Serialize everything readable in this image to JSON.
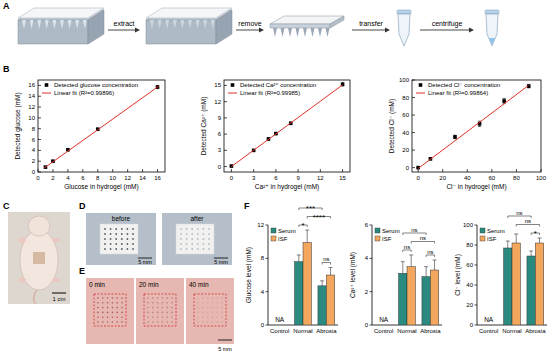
{
  "panel_labels": [
    "A",
    "B",
    "C",
    "D",
    "E",
    "F"
  ],
  "schematic": {
    "steps": [
      "extract",
      "remove",
      "transfer",
      "centrifuge"
    ]
  },
  "photos": {
    "C": {
      "scale_bar": "1 cm"
    },
    "D": {
      "captions": [
        "before",
        "after"
      ],
      "scale_bars": [
        "5 mm",
        "5 mm"
      ]
    },
    "E": {
      "captions": [
        "0 min",
        "20 min",
        "40 min"
      ],
      "scale_bar": "5 mm"
    }
  },
  "chart_data": [
    {
      "type": "scatter",
      "x_label": "Glucose in hydrogel (mM)",
      "y_label": "Detected glucose (mM)",
      "xlim": [
        0,
        17
      ],
      "ylim": [
        0,
        17
      ],
      "xticks": [
        0,
        2,
        4,
        6,
        8,
        10,
        12,
        14,
        16
      ],
      "yticks": [
        0,
        2,
        4,
        6,
        8,
        10,
        12,
        14,
        16
      ],
      "grid": false,
      "legend": "upper left",
      "series": [
        {
          "name": "Detected glucose concentration",
          "type": "scatter",
          "marker": "square",
          "color": "#000000",
          "x": [
            1,
            2,
            4,
            8,
            16
          ],
          "values": [
            0.9,
            2.0,
            4.1,
            7.9,
            15.7
          ],
          "errors": [
            0.1,
            0.1,
            0.15,
            0.2,
            0.3
          ]
        },
        {
          "name": "Linear fit (R²=0.99896)",
          "type": "line",
          "line_style": "solid",
          "color": "#e0302a",
          "x": [
            0.8,
            16.2
          ],
          "values": [
            0.7,
            15.9
          ]
        }
      ]
    },
    {
      "type": "scatter",
      "x_label": "Ca²⁺ in hydrogel (mM)",
      "y_label": "Detected Ca²⁺ (mM)",
      "xlim": [
        -1,
        16
      ],
      "ylim": [
        -1,
        16
      ],
      "xticks": [
        0,
        3,
        6,
        9,
        12,
        15
      ],
      "yticks": [
        0,
        3,
        6,
        9,
        12,
        15
      ],
      "grid": false,
      "legend": "upper left",
      "series": [
        {
          "name": "Detected Ca²⁺ concentration",
          "type": "scatter",
          "marker": "square",
          "color": "#000000",
          "x": [
            0,
            3,
            5,
            6,
            8,
            15
          ],
          "values": [
            0.1,
            3.0,
            5.1,
            6.1,
            8.0,
            15.2
          ],
          "errors": [
            0.1,
            0.1,
            0.2,
            0.2,
            0.2,
            0.3
          ]
        },
        {
          "name": "Linear fit (R²=0.99985)",
          "type": "line",
          "line_style": "solid",
          "color": "#e0302a",
          "x": [
            0,
            15
          ],
          "values": [
            0,
            15.1
          ]
        }
      ]
    },
    {
      "type": "scatter",
      "x_label": "Cl⁻ in hydrogel (mM)",
      "y_label": "Detected Cl⁻ (mM)",
      "xlim": [
        -5,
        100
      ],
      "ylim": [
        -5,
        100
      ],
      "xticks": [
        0,
        20,
        40,
        60,
        80,
        100
      ],
      "yticks": [
        0,
        20,
        40,
        60,
        80,
        100
      ],
      "grid": false,
      "legend": "upper left",
      "series": [
        {
          "name": "Detected Cl⁻ concentration",
          "type": "scatter",
          "marker": "square",
          "color": "#000000",
          "x": [
            0,
            10,
            30,
            50,
            70,
            90
          ],
          "values": [
            0,
            10,
            35,
            50,
            76,
            93
          ],
          "errors": [
            0.5,
            1,
            2,
            3,
            3,
            2
          ]
        },
        {
          "name": "Linear fit (R²=0.99864)",
          "type": "line",
          "line_style": "solid",
          "color": "#e0302a",
          "x": [
            0,
            90
          ],
          "values": [
            -1,
            94
          ]
        }
      ]
    },
    {
      "type": "bar",
      "y_label": "Glucose level (mM)",
      "categories": [
        "Control",
        "Normal",
        "Abrosia"
      ],
      "ylim": [
        0,
        12
      ],
      "yticks": [
        0,
        4,
        8,
        12
      ],
      "grid": false,
      "legend": "upper left",
      "series": [
        {
          "name": "Serum",
          "color": "#2a8a80",
          "values": [
            null,
            7.6,
            4.7
          ],
          "errors": [
            null,
            0.8,
            0.6
          ]
        },
        {
          "name": "ISF",
          "color": "#f2a65e",
          "values": [
            null,
            9.9,
            6.0
          ],
          "errors": [
            null,
            1.5,
            0.9
          ]
        }
      ],
      "annotations": [
        {
          "text": "NA",
          "category": "Control"
        }
      ],
      "comparisons": [
        {
          "label": "*",
          "bars": [
            [
              "Serum",
              "Normal"
            ],
            [
              "ISF",
              "Normal"
            ]
          ]
        },
        {
          "label": "ns",
          "bars": [
            [
              "Serum",
              "Abrosia"
            ],
            [
              "ISF",
              "Abrosia"
            ]
          ]
        },
        {
          "label": "****",
          "bars": [
            [
              "ISF",
              "Normal"
            ],
            [
              "ISF",
              "Abrosia"
            ]
          ]
        },
        {
          "label": "***",
          "bars": [
            [
              "Serum",
              "Normal"
            ],
            [
              "Serum",
              "Abrosia"
            ]
          ]
        }
      ]
    },
    {
      "type": "bar",
      "y_label": "Ca²⁺ level (mM)",
      "categories": [
        "Control",
        "Normal",
        "Abrosia"
      ],
      "ylim": [
        0,
        6
      ],
      "yticks": [
        0,
        2,
        4,
        6
      ],
      "grid": false,
      "legend": "upper left",
      "series": [
        {
          "name": "Serum",
          "color": "#2a8a80",
          "values": [
            null,
            3.1,
            2.9
          ],
          "errors": [
            null,
            0.7,
            0.6
          ]
        },
        {
          "name": "ISF",
          "color": "#f2a65e",
          "values": [
            null,
            3.5,
            3.3
          ],
          "errors": [
            null,
            0.7,
            0.6
          ]
        }
      ],
      "annotations": [
        {
          "text": "NA",
          "category": "Control"
        }
      ],
      "comparisons": [
        {
          "label": "ns",
          "bars": [
            [
              "Serum",
              "Normal"
            ],
            [
              "ISF",
              "Normal"
            ]
          ]
        },
        {
          "label": "ns",
          "bars": [
            [
              "Serum",
              "Abrosia"
            ],
            [
              "ISF",
              "Abrosia"
            ]
          ]
        },
        {
          "label": "ns",
          "bars": [
            [
              "ISF",
              "Normal"
            ],
            [
              "ISF",
              "Abrosia"
            ]
          ]
        },
        {
          "label": "ns",
          "bars": [
            [
              "Serum",
              "Normal"
            ],
            [
              "Serum",
              "Abrosia"
            ]
          ]
        }
      ]
    },
    {
      "type": "bar",
      "y_label": "Cl⁻ level (mM)",
      "categories": [
        "Control",
        "Normal",
        "Abrosia"
      ],
      "ylim": [
        0,
        100
      ],
      "yticks": [
        0,
        20,
        40,
        60,
        80,
        100
      ],
      "grid": false,
      "legend": "upper left",
      "series": [
        {
          "name": "Serum",
          "color": "#2a8a80",
          "values": [
            null,
            77,
            69
          ],
          "errors": [
            null,
            7,
            5
          ]
        },
        {
          "name": "ISF",
          "color": "#f2a65e",
          "values": [
            null,
            82,
            82
          ],
          "errors": [
            null,
            9,
            5
          ]
        }
      ],
      "annotations": [
        {
          "text": "NA",
          "category": "Control"
        }
      ],
      "comparisons": [
        {
          "label": "*",
          "bars": [
            [
              "Serum",
              "Abrosia"
            ],
            [
              "ISF",
              "Abrosia"
            ]
          ]
        },
        {
          "label": "ns",
          "bars": [
            [
              "ISF",
              "Normal"
            ],
            [
              "ISF",
              "Abrosia"
            ]
          ]
        },
        {
          "label": "ns",
          "bars": [
            [
              "Serum",
              "Normal"
            ],
            [
              "Serum",
              "Abrosia"
            ]
          ]
        }
      ]
    }
  ]
}
